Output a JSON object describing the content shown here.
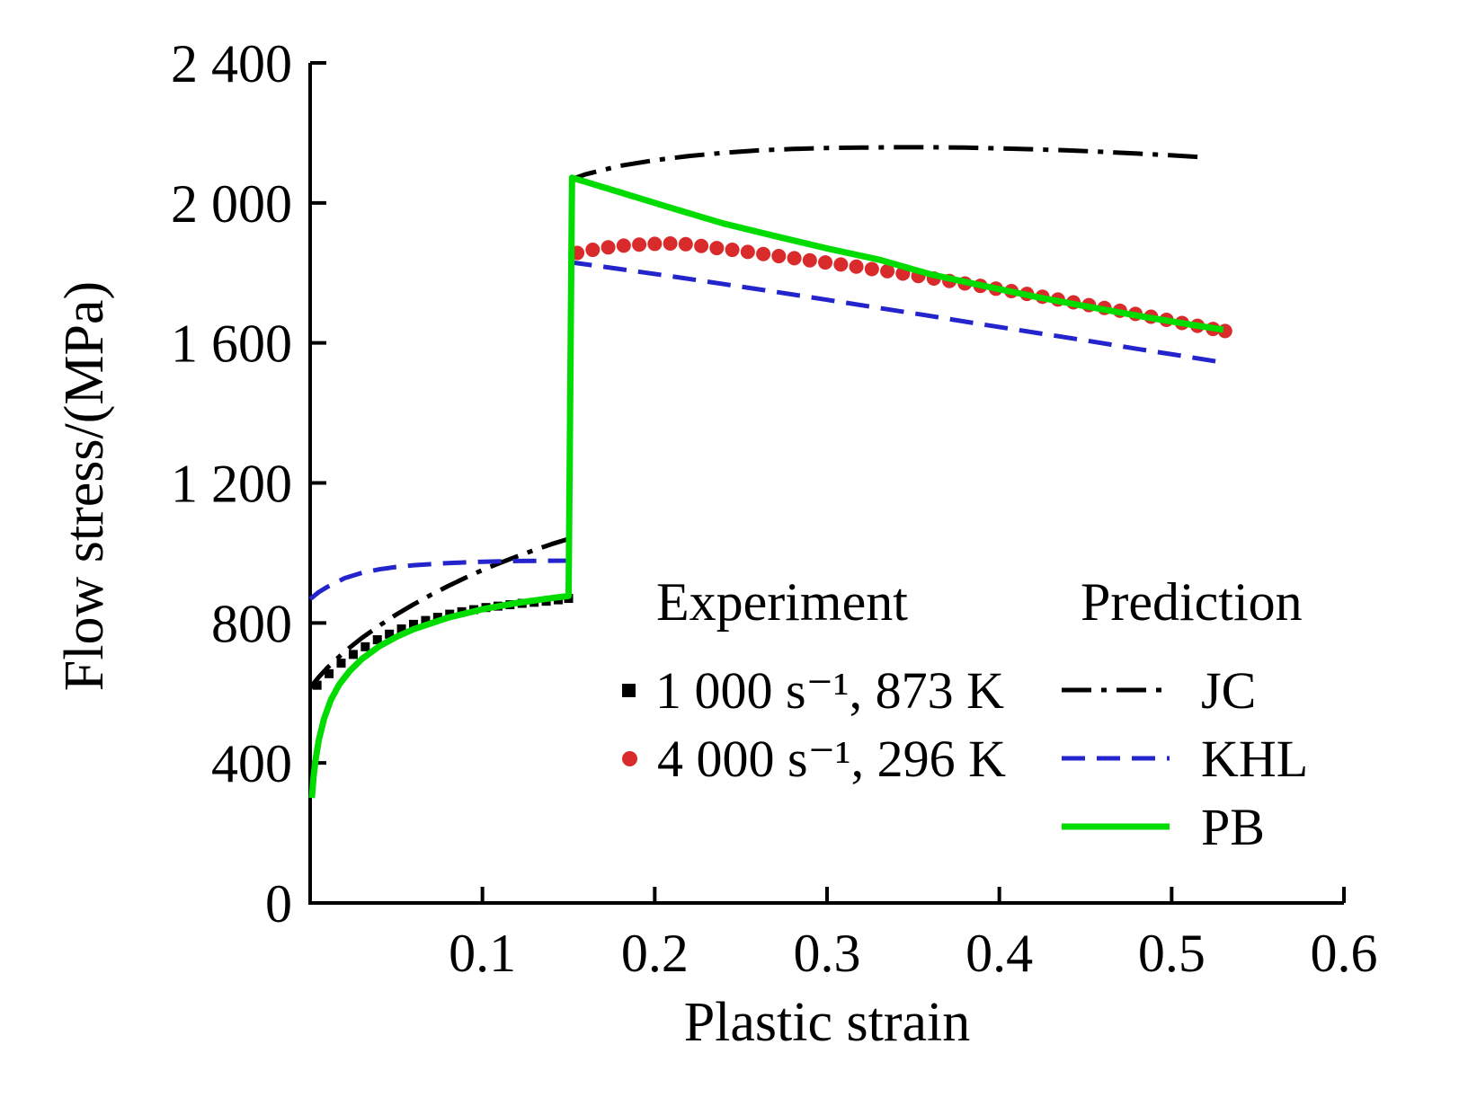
{
  "figure": {
    "xlabel": "Plastic strain",
    "ylabel": "Flow stress/(MPa)"
  },
  "chart_data": {
    "type": "line+scatter",
    "title": "",
    "xlabel": "Plastic strain",
    "ylabel": "Flow stress/(MPa)",
    "xlim": [
      0,
      0.6
    ],
    "ylim": [
      0,
      2400
    ],
    "grid": false,
    "xticks": [
      {
        "v": 0.1,
        "label": "0.1"
      },
      {
        "v": 0.2,
        "label": "0.2"
      },
      {
        "v": 0.3,
        "label": "0.3"
      },
      {
        "v": 0.4,
        "label": "0.4"
      },
      {
        "v": 0.5,
        "label": "0.5"
      },
      {
        "v": 0.6,
        "label": "0.6"
      }
    ],
    "yticks": [
      {
        "v": 0,
        "label": "0"
      },
      {
        "v": 400,
        "label": "400"
      },
      {
        "v": 800,
        "label": "800"
      },
      {
        "v": 1200,
        "label": "1 200"
      },
      {
        "v": 1600,
        "label": "1 600"
      },
      {
        "v": 2000,
        "label": "2 000"
      },
      {
        "v": 2400,
        "label": "2 400"
      }
    ],
    "legend": {
      "experiment_heading": "Experiment",
      "prediction_heading": "Prediction",
      "experiment_entries": [
        {
          "series": "exp_1000s_873K",
          "label": "1 000 s⁻¹, 873 K"
        },
        {
          "series": "exp_4000s_296K",
          "label": "4 000 s⁻¹, 296 K"
        }
      ],
      "prediction_entries": [
        {
          "series": "JC",
          "label": "JC"
        },
        {
          "series": "KHL",
          "label": "KHL"
        },
        {
          "series": "PB",
          "label": "PB"
        }
      ]
    },
    "series": [
      {
        "name": "exp_1000s_873K",
        "type": "scatter",
        "marker": "square",
        "color": "#000000",
        "size": 10,
        "points": [
          [
            0.004,
            622
          ],
          [
            0.011,
            655
          ],
          [
            0.018,
            685
          ],
          [
            0.025,
            710
          ],
          [
            0.032,
            732
          ],
          [
            0.039,
            752
          ],
          [
            0.046,
            768
          ],
          [
            0.053,
            783
          ],
          [
            0.06,
            796
          ],
          [
            0.067,
            807
          ],
          [
            0.074,
            816
          ],
          [
            0.081,
            825
          ],
          [
            0.088,
            832
          ],
          [
            0.095,
            838
          ],
          [
            0.102,
            844
          ],
          [
            0.109,
            848
          ],
          [
            0.116,
            852
          ],
          [
            0.123,
            856
          ],
          [
            0.13,
            859
          ],
          [
            0.137,
            862
          ],
          [
            0.144,
            866
          ],
          [
            0.15,
            870
          ]
        ]
      },
      {
        "name": "exp_4000s_296K",
        "type": "scatter",
        "marker": "circle",
        "color": "#d92b2b",
        "size": 16,
        "points": [
          [
            0.155,
            1857
          ],
          [
            0.164,
            1866
          ],
          [
            0.173,
            1873
          ],
          [
            0.182,
            1878
          ],
          [
            0.191,
            1881
          ],
          [
            0.2,
            1883
          ],
          [
            0.209,
            1884
          ],
          [
            0.218,
            1882
          ],
          [
            0.227,
            1877
          ],
          [
            0.236,
            1871
          ],
          [
            0.245,
            1866
          ],
          [
            0.254,
            1860
          ],
          [
            0.263,
            1854
          ],
          [
            0.272,
            1848
          ],
          [
            0.281,
            1842
          ],
          [
            0.29,
            1836
          ],
          [
            0.299,
            1830
          ],
          [
            0.308,
            1824
          ],
          [
            0.317,
            1818
          ],
          [
            0.326,
            1811
          ],
          [
            0.335,
            1805
          ],
          [
            0.344,
            1798
          ],
          [
            0.353,
            1791
          ],
          [
            0.362,
            1784
          ],
          [
            0.371,
            1777
          ],
          [
            0.38,
            1770
          ],
          [
            0.389,
            1763
          ],
          [
            0.398,
            1755
          ],
          [
            0.407,
            1748
          ],
          [
            0.416,
            1740
          ],
          [
            0.425,
            1732
          ],
          [
            0.434,
            1724
          ],
          [
            0.443,
            1716
          ],
          [
            0.452,
            1708
          ],
          [
            0.461,
            1700
          ],
          [
            0.47,
            1692
          ],
          [
            0.479,
            1683
          ],
          [
            0.488,
            1675
          ],
          [
            0.497,
            1666
          ],
          [
            0.506,
            1657
          ],
          [
            0.515,
            1649
          ],
          [
            0.524,
            1640
          ],
          [
            0.531,
            1634
          ]
        ]
      },
      {
        "name": "JC",
        "type": "line",
        "style": "dashdot",
        "color": "#000000",
        "width": 5,
        "points": [
          [
            0.0,
            615
          ],
          [
            0.005,
            645
          ],
          [
            0.01,
            672
          ],
          [
            0.02,
            718
          ],
          [
            0.03,
            757
          ],
          [
            0.04,
            792
          ],
          [
            0.05,
            824
          ],
          [
            0.06,
            853
          ],
          [
            0.07,
            880
          ],
          [
            0.08,
            905
          ],
          [
            0.09,
            929
          ],
          [
            0.1,
            951
          ],
          [
            0.11,
            971
          ],
          [
            0.12,
            990
          ],
          [
            0.13,
            1008
          ],
          [
            0.14,
            1025
          ],
          [
            0.15,
            1040
          ],
          [
            0.152,
            2068
          ],
          [
            0.16,
            2082
          ],
          [
            0.18,
            2106
          ],
          [
            0.2,
            2122
          ],
          [
            0.22,
            2134
          ],
          [
            0.24,
            2143
          ],
          [
            0.26,
            2150
          ],
          [
            0.28,
            2154
          ],
          [
            0.3,
            2157
          ],
          [
            0.32,
            2158
          ],
          [
            0.34,
            2159
          ],
          [
            0.36,
            2159
          ],
          [
            0.38,
            2158
          ],
          [
            0.4,
            2156
          ],
          [
            0.42,
            2153
          ],
          [
            0.44,
            2150
          ],
          [
            0.46,
            2146
          ],
          [
            0.48,
            2141
          ],
          [
            0.5,
            2136
          ],
          [
            0.52,
            2130
          ]
        ]
      },
      {
        "name": "KHL",
        "type": "line",
        "style": "dashed",
        "color": "#2424cc",
        "width": 5,
        "points": [
          [
            0.0,
            868
          ],
          [
            0.005,
            888
          ],
          [
            0.01,
            903
          ],
          [
            0.02,
            928
          ],
          [
            0.03,
            943
          ],
          [
            0.04,
            953
          ],
          [
            0.05,
            960
          ],
          [
            0.06,
            965
          ],
          [
            0.08,
            971
          ],
          [
            0.1,
            975
          ],
          [
            0.12,
            977
          ],
          [
            0.15,
            978
          ],
          [
            0.152,
            1830
          ],
          [
            0.18,
            1811
          ],
          [
            0.21,
            1790
          ],
          [
            0.24,
            1768
          ],
          [
            0.27,
            1746
          ],
          [
            0.3,
            1723
          ],
          [
            0.33,
            1700
          ],
          [
            0.36,
            1677
          ],
          [
            0.39,
            1653
          ],
          [
            0.42,
            1630
          ],
          [
            0.45,
            1607
          ],
          [
            0.48,
            1583
          ],
          [
            0.51,
            1560
          ],
          [
            0.53,
            1544
          ]
        ]
      },
      {
        "name": "PB",
        "type": "line",
        "style": "solid",
        "color": "#00dc00",
        "width": 7,
        "points": [
          [
            0.001,
            300
          ],
          [
            0.002,
            360
          ],
          [
            0.003,
            405
          ],
          [
            0.005,
            465
          ],
          [
            0.008,
            525
          ],
          [
            0.012,
            580
          ],
          [
            0.017,
            625
          ],
          [
            0.023,
            663
          ],
          [
            0.03,
            697
          ],
          [
            0.04,
            733
          ],
          [
            0.05,
            760
          ],
          [
            0.06,
            782
          ],
          [
            0.08,
            815
          ],
          [
            0.1,
            839
          ],
          [
            0.12,
            857
          ],
          [
            0.14,
            871
          ],
          [
            0.15,
            877
          ],
          [
            0.152,
            2072
          ],
          [
            0.18,
            2030
          ],
          [
            0.21,
            1985
          ],
          [
            0.24,
            1941
          ],
          [
            0.27,
            1905
          ],
          [
            0.3,
            1870
          ],
          [
            0.33,
            1838
          ],
          [
            0.36,
            1796
          ],
          [
            0.39,
            1764
          ],
          [
            0.42,
            1733
          ],
          [
            0.45,
            1705
          ],
          [
            0.48,
            1678
          ],
          [
            0.51,
            1653
          ],
          [
            0.53,
            1638
          ]
        ]
      }
    ]
  }
}
